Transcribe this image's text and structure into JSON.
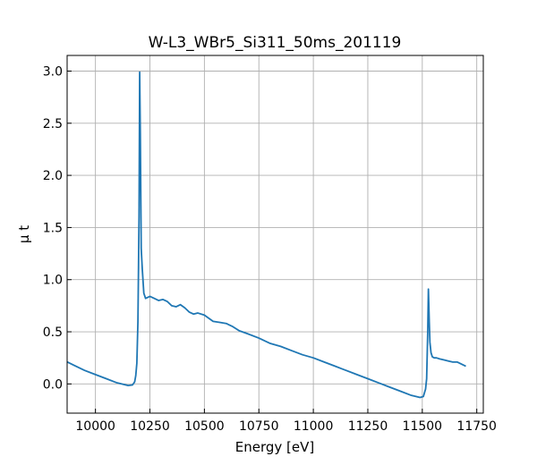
{
  "chart_data": {
    "type": "line",
    "title": "W-L3_WBr5_Si311_50ms_201119",
    "xlabel": "Energy [eV]",
    "ylabel": "μ t",
    "xlim": [
      9870,
      11780
    ],
    "ylim": [
      -0.28,
      3.15
    ],
    "xticks": [
      10000,
      10250,
      10500,
      10750,
      11000,
      11250,
      11500,
      11750
    ],
    "yticks": [
      0.0,
      0.5,
      1.0,
      1.5,
      2.0,
      2.5,
      3.0
    ],
    "ytick_labels": [
      "0.0",
      "0.5",
      "1.0",
      "1.5",
      "2.0",
      "2.5",
      "3.0"
    ],
    "grid": true,
    "legend": "none",
    "series": [
      {
        "color": "#1f77b4",
        "x": [
          9871,
          9900,
          9950,
          10000,
          10050,
          10100,
          10150,
          10170,
          10180,
          10185,
          10190,
          10195,
          10200,
          10203,
          10206,
          10210,
          10215,
          10222,
          10230,
          10250,
          10270,
          10290,
          10310,
          10330,
          10350,
          10370,
          10390,
          10410,
          10430,
          10450,
          10470,
          10500,
          10520,
          10540,
          10570,
          10600,
          10630,
          10660,
          10700,
          10750,
          10800,
          10850,
          10900,
          10950,
          11000,
          11050,
          11100,
          11150,
          11200,
          11250,
          11300,
          11350,
          11400,
          11450,
          11490,
          11505,
          11515,
          11520,
          11525,
          11528,
          11532,
          11535,
          11540,
          11546,
          11555,
          11565,
          11580,
          11600,
          11620,
          11640,
          11660,
          11680,
          11700
        ],
        "y": [
          0.21,
          0.18,
          0.13,
          0.09,
          0.05,
          0.01,
          -0.015,
          -0.01,
          0.02,
          0.08,
          0.2,
          0.6,
          1.6,
          2.99,
          2.4,
          1.3,
          1.1,
          0.87,
          0.82,
          0.84,
          0.82,
          0.8,
          0.81,
          0.79,
          0.75,
          0.74,
          0.76,
          0.73,
          0.69,
          0.67,
          0.68,
          0.66,
          0.63,
          0.6,
          0.59,
          0.58,
          0.55,
          0.51,
          0.48,
          0.44,
          0.39,
          0.36,
          0.32,
          0.28,
          0.25,
          0.21,
          0.17,
          0.13,
          0.09,
          0.05,
          0.01,
          -0.03,
          -0.07,
          -0.11,
          -0.13,
          -0.12,
          -0.05,
          0.05,
          0.5,
          0.91,
          0.6,
          0.4,
          0.3,
          0.26,
          0.25,
          0.25,
          0.24,
          0.23,
          0.22,
          0.21,
          0.21,
          0.19,
          0.17
        ]
      }
    ]
  }
}
